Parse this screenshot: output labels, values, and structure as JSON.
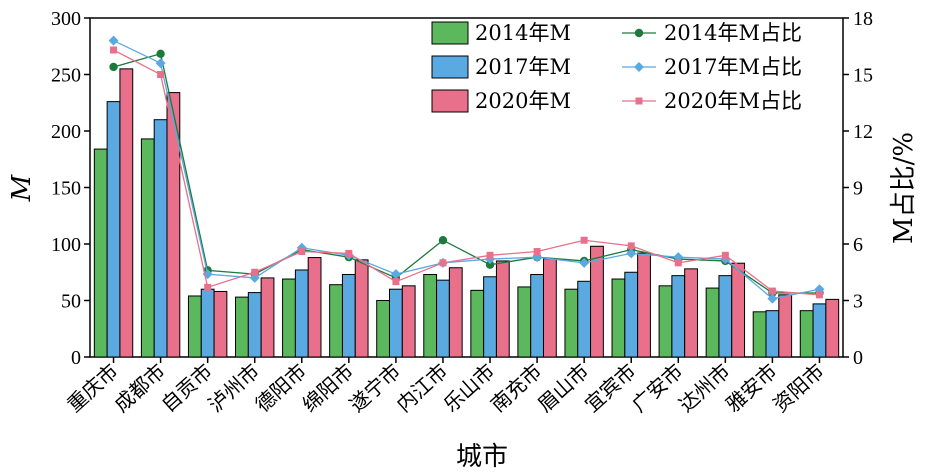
{
  "chart_data": {
    "type": "bar+line",
    "xlabel": "城市",
    "ylabel": "M",
    "y2label": "M占比/%",
    "ylim": [
      0,
      300
    ],
    "y2lim": [
      0,
      18
    ],
    "yticks": [
      "0",
      "50",
      "100",
      "150",
      "200",
      "250",
      "300"
    ],
    "y2ticks": [
      "0",
      "3",
      "6",
      "9",
      "12",
      "15",
      "18"
    ],
    "legend_position": "top-right",
    "grid": false,
    "categories": [
      "重庆市",
      "成都市",
      "自贡市",
      "泸州市",
      "德阳市",
      "绵阳市",
      "遂宁市",
      "内江市",
      "乐山市",
      "南充市",
      "眉山市",
      "宜宾市",
      "广安市",
      "达州市",
      "雅安市",
      "资阳市"
    ],
    "bar_series": [
      {
        "name": "2014年M",
        "color": "#5cb85c",
        "values": [
          184,
          193,
          54,
          53,
          69,
          64,
          50,
          73,
          59,
          62,
          60,
          69,
          63,
          61,
          40,
          41
        ]
      },
      {
        "name": "2017年M",
        "color": "#5aa9e0",
        "values": [
          226,
          210,
          60,
          57,
          77,
          73,
          60,
          68,
          71,
          73,
          67,
          75,
          72,
          72,
          41,
          47
        ]
      },
      {
        "name": "2020年M",
        "color": "#e8708a",
        "values": [
          255,
          234,
          58,
          70,
          88,
          86,
          63,
          79,
          85,
          87,
          98,
          92,
          78,
          83,
          55,
          51
        ]
      }
    ],
    "line_series": [
      {
        "name": "2014年M占比",
        "color": "#1b7a3c",
        "marker": "circle",
        "values": [
          15.4,
          16.1,
          4.6,
          4.4,
          5.7,
          5.3,
          4.2,
          6.2,
          4.9,
          5.3,
          5.1,
          5.7,
          5.2,
          5.1,
          3.4,
          3.4
        ]
      },
      {
        "name": "2017年M占比",
        "color": "#5aa9e0",
        "marker": "diamond",
        "values": [
          16.8,
          15.6,
          4.4,
          4.2,
          5.8,
          5.4,
          4.4,
          5.0,
          5.2,
          5.3,
          5.0,
          5.5,
          5.3,
          5.2,
          3.1,
          3.6
        ]
      },
      {
        "name": "2020年M占比",
        "color": "#e8708a",
        "marker": "square",
        "values": [
          16.3,
          15.0,
          3.7,
          4.5,
          5.6,
          5.5,
          4.0,
          5.0,
          5.4,
          5.6,
          6.2,
          5.9,
          5.0,
          5.4,
          3.5,
          3.3
        ]
      }
    ]
  }
}
